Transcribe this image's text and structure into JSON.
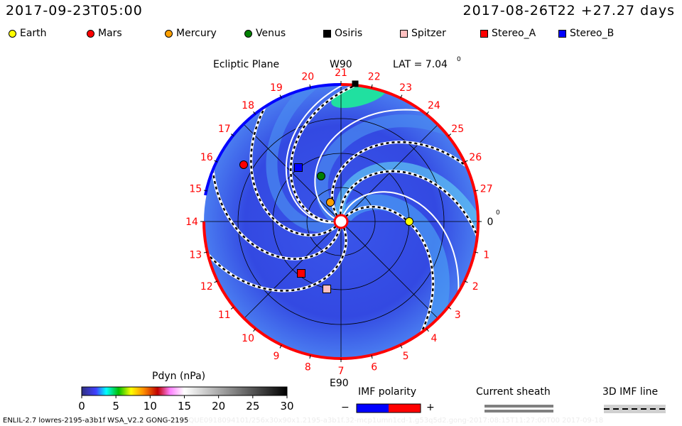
{
  "header": {
    "current_time": "2017-09-23T05:00",
    "reference": "2017-08-26T22 +27.27 days"
  },
  "legend": [
    {
      "name": "Earth",
      "shape": "circle",
      "color": "#ffff00"
    },
    {
      "name": "Mars",
      "shape": "circle",
      "color": "#ff0000"
    },
    {
      "name": "Mercury",
      "shape": "circle",
      "color": "#ffa000"
    },
    {
      "name": "Venus",
      "shape": "circle",
      "color": "#008000"
    },
    {
      "name": "Osiris",
      "shape": "square",
      "color": "#000000"
    },
    {
      "name": "Spitzer",
      "shape": "square",
      "color": "#ffc0c0"
    },
    {
      "name": "Stereo_A",
      "shape": "square",
      "color": "#ff0000"
    },
    {
      "name": "Stereo_B",
      "shape": "square",
      "color": "#0000ff"
    }
  ],
  "plot": {
    "title": "Ecliptic Plane",
    "top_label": "W90",
    "bottom_label": "E90",
    "lat_label": "LAT = 7.04",
    "lat_unit": "0",
    "zero_label_unit": "0",
    "longitude_labels": [
      "0",
      "1",
      "2",
      "3",
      "4",
      "5",
      "6",
      "7",
      "8",
      "9",
      "10",
      "11",
      "12",
      "13",
      "14",
      "15",
      "16",
      "17",
      "18",
      "19",
      "20",
      "21",
      "22",
      "23",
      "24",
      "25",
      "26",
      "27"
    ]
  },
  "colorbar": {
    "title": "Pdyn (nPa)",
    "ticks": [
      "0",
      "5",
      "10",
      "15",
      "20",
      "25",
      "30"
    ],
    "range": [
      0,
      30
    ]
  },
  "imf_legend": {
    "title": "IMF polarity",
    "minus": "−",
    "plus": "+",
    "neg_color": "#0000ff",
    "pos_color": "#ff0000"
  },
  "sheath_legend": {
    "title": "Current sheath"
  },
  "imf_line_legend": {
    "title": "3D IMF line"
  },
  "footer": {
    "main": "ENLIL-2.7 lowres-2195-a3b1f WSA_V2.2 GONG-2195",
    "faint": "QUE0918094101/256x30x90x1.2195-a3b1f.32-mcp1umn1cd-1.g53q5d2.gong-2017:08:15T11:27:00T00    2017-09-18"
  }
}
